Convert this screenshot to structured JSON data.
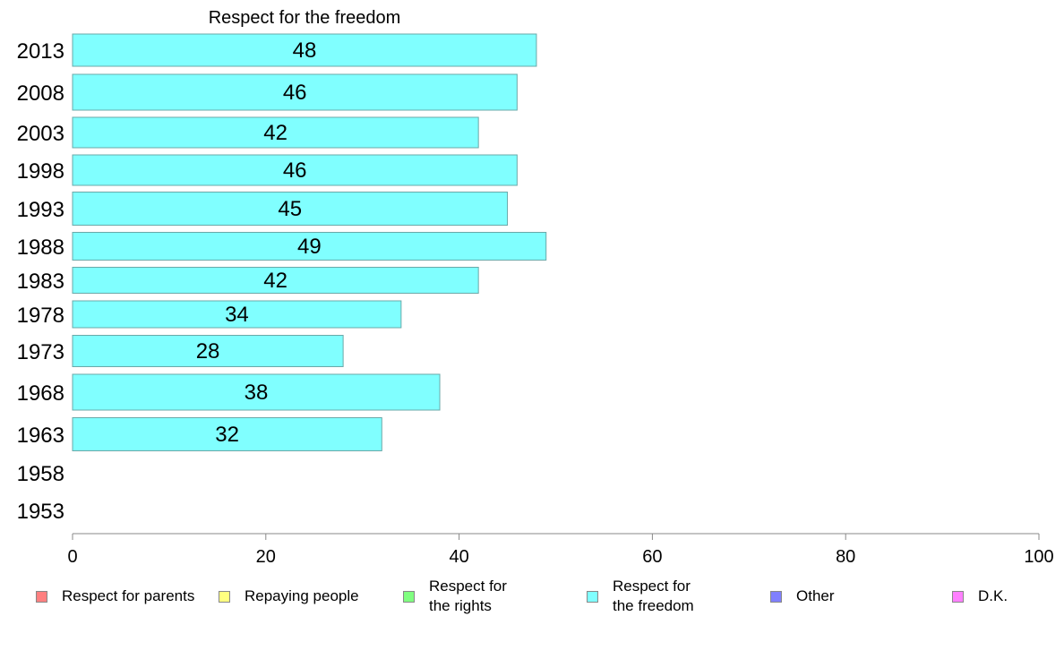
{
  "chart_data": {
    "type": "bar",
    "orientation": "horizontal",
    "title": "Respect for the freedom",
    "categories": [
      "2013",
      "2008",
      "2003",
      "1998",
      "1993",
      "1988",
      "1983",
      "1978",
      "1973",
      "1968",
      "1963",
      "1958",
      "1953"
    ],
    "values": [
      48,
      46,
      42,
      46,
      45,
      49,
      42,
      34,
      28,
      38,
      32,
      null,
      null
    ],
    "data_labels": [
      "48",
      "46",
      "42",
      "46",
      "45",
      "49",
      "42",
      "34",
      "28",
      "38",
      "32",
      "",
      ""
    ],
    "xlim": [
      0,
      100
    ],
    "xticks": [
      "0",
      "20",
      "40",
      "60",
      "80",
      "100"
    ],
    "bar_color": "#80ffff",
    "bar_border_color": "#6aa8a8",
    "grid": false,
    "legend_position": "bottom",
    "legend": [
      {
        "label": "Respect for parents",
        "color": "#ff8080"
      },
      {
        "label": "Repaying people",
        "color": "#ffff80"
      },
      {
        "label": "Respect for\nthe rights",
        "color": "#80ff80"
      },
      {
        "label": "Respect for\nthe freedom",
        "color": "#80ffff"
      },
      {
        "label": "Other",
        "color": "#8080ff"
      },
      {
        "label": "D.K.",
        "color": "#ff80ff"
      }
    ]
  }
}
